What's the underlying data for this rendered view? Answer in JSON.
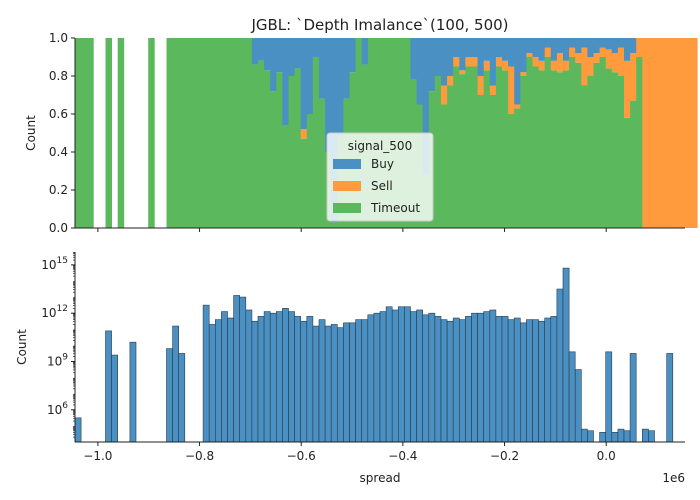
{
  "title": "JGBL: `Depth Imalance`(100, 500)",
  "colors": {
    "buy": "#4a90c2",
    "sell": "#ff9a3d",
    "timeout": "#5cb85c"
  },
  "chart_data": [
    {
      "type": "area",
      "stacking": "fill",
      "ylabel": "Count",
      "ylim": [
        0,
        1
      ],
      "yticks": [
        "0.0",
        "0.2",
        "0.4",
        "0.6",
        "0.8",
        "1.0"
      ],
      "xlim": [
        -1.045,
        0.155
      ],
      "legend": {
        "title": "signal_500",
        "entries": [
          "Buy",
          "Sell",
          "Timeout"
        ],
        "placement": "center"
      },
      "bins": {
        "start": -1.045,
        "width": 0.012,
        "buy": [
          0,
          0,
          0,
          0,
          0,
          0,
          0,
          0,
          0,
          0,
          0,
          0,
          0,
          0,
          0,
          0,
          0,
          0,
          0,
          0,
          0,
          0,
          0,
          0,
          0,
          0,
          0,
          0,
          0,
          0.14,
          0.12,
          0.17,
          0.28,
          0.18,
          0.46,
          0.2,
          0.16,
          0.48,
          0.4,
          0.1,
          0.32,
          0.6,
          0.97,
          0.52,
          0.32,
          0.18,
          0,
          0.14,
          0,
          0,
          0,
          0,
          0,
          0,
          0,
          0.22,
          0.35,
          0.72,
          0.28,
          0.2,
          0.25,
          0.2,
          0.1,
          0.17,
          0.1,
          0.1,
          0.2,
          0.12,
          0.25,
          0.1,
          0.12,
          0.15,
          0.35,
          0.18,
          0.08,
          0.1,
          0.12,
          0.05,
          0.12,
          0.08,
          0.12,
          0.05,
          0.08,
          0.05,
          0.1,
          0.08,
          0.05,
          0.06,
          0.08,
          0.05,
          0.12,
          0.08,
          0,
          0,
          0,
          0,
          0,
          0,
          0,
          0,
          0,
          0
        ],
        "sell": [
          0,
          0,
          0,
          0,
          0,
          0,
          0,
          0,
          0,
          0,
          0,
          0,
          0,
          0,
          0,
          0,
          0,
          0,
          0,
          0,
          0,
          0,
          0,
          0,
          0,
          0,
          0,
          0,
          0,
          0,
          0,
          0,
          0,
          0,
          0,
          0,
          0,
          0.05,
          0,
          0,
          0,
          0,
          0,
          0,
          0,
          0,
          0,
          0,
          0,
          0,
          0,
          0,
          0,
          0,
          0,
          0,
          0,
          0,
          0,
          0,
          0.1,
          0.05,
          0.05,
          0.02,
          0.05,
          0.05,
          0.1,
          0.05,
          0.05,
          0.05,
          0.05,
          0.25,
          0.02,
          0.02,
          0.02,
          0.05,
          0.05,
          0.05,
          0.05,
          0.1,
          0.05,
          0.05,
          0.05,
          0.2,
          0.1,
          0.05,
          0.05,
          0.1,
          0.1,
          0.15,
          0.3,
          0.25,
          0.1,
          1,
          1,
          1,
          1,
          1,
          1,
          1,
          1,
          1,
          1
        ],
        "timeout": "remainder",
        "empty": [
          3,
          4,
          6,
          8,
          9,
          10,
          11,
          13,
          14
        ]
      }
    },
    {
      "type": "bar",
      "yscale": "log",
      "ylabel": "Count",
      "xlabel": "spread",
      "x_offset_label": "1e6",
      "xlim": [
        -1.045,
        0.155
      ],
      "ylim_exp": [
        4,
        15.8
      ],
      "yticks": [
        6,
        9,
        12,
        15
      ],
      "xticks": [
        "−1.0",
        "−0.8",
        "−0.6",
        "−0.4",
        "−0.2",
        "0.0"
      ],
      "xtick_values": [
        -1.0,
        -0.8,
        -0.6,
        -0.4,
        -0.2,
        0.0
      ],
      "bins": {
        "start": -1.045,
        "width": 0.012,
        "log10_counts": [
          5.5,
          null,
          null,
          null,
          null,
          10.9,
          9.4,
          null,
          null,
          10.2,
          null,
          null,
          null,
          null,
          null,
          9.8,
          11.2,
          9.5,
          null,
          null,
          null,
          12.5,
          11.3,
          11.6,
          12.1,
          11.7,
          13.1,
          13,
          12.2,
          11.5,
          11.8,
          12.1,
          12,
          12.1,
          12.3,
          12.1,
          11.8,
          11.5,
          11.8,
          11.2,
          11.6,
          11.2,
          11.3,
          11.1,
          11.4,
          11.4,
          11.6,
          11.6,
          11.9,
          12,
          12.1,
          12.4,
          12.2,
          12.4,
          12.4,
          12.1,
          12.2,
          11.9,
          12,
          11.8,
          11.6,
          11.5,
          11.7,
          11.6,
          11.8,
          12,
          12,
          12.1,
          12.2,
          11.8,
          11.8,
          11.6,
          11.7,
          11.4,
          11.6,
          11.6,
          11.5,
          11.7,
          11.8,
          13.5,
          14.8,
          9.6,
          8.5,
          4.8,
          4.7,
          null,
          4.6,
          9.6,
          4.6,
          4.8,
          4.7,
          9.5,
          null,
          4.8,
          4.7,
          null,
          null,
          9.5,
          null,
          null
        ]
      }
    }
  ]
}
